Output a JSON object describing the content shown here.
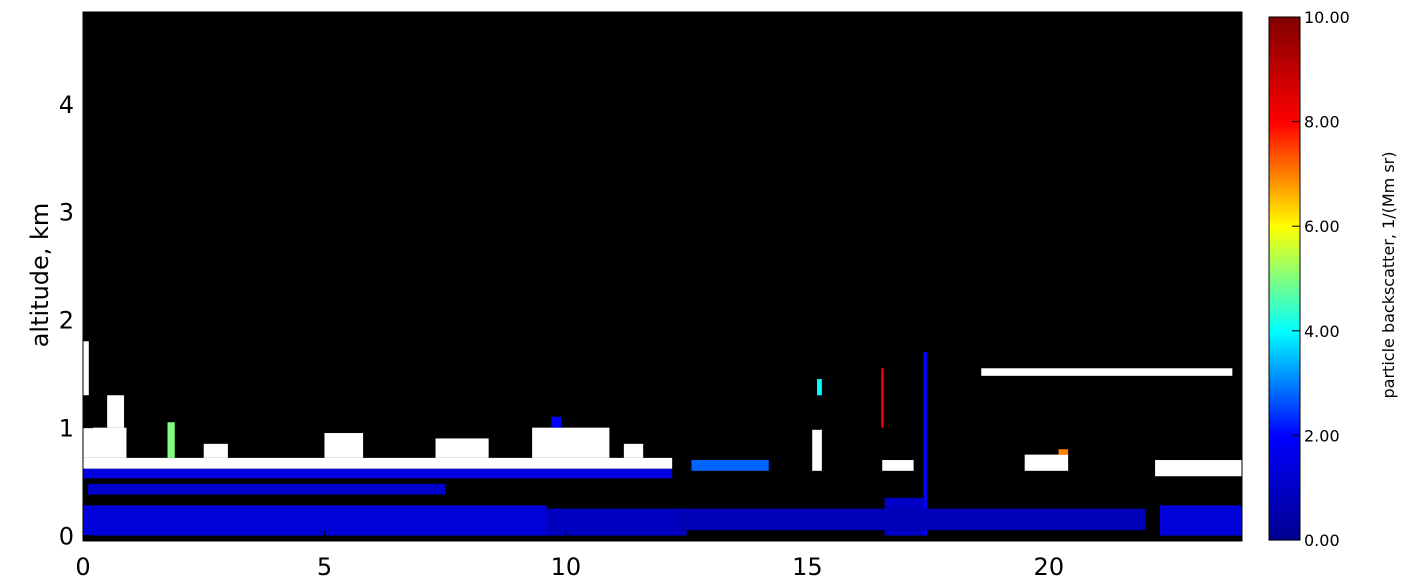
{
  "chart_data": {
    "type": "heatmap",
    "title": "",
    "xlabel": "",
    "ylabel": "altitude, km",
    "xlim": [
      0,
      24
    ],
    "ylim": [
      -0.05,
      4.85
    ],
    "x_ticks": [
      0,
      5,
      10,
      15,
      20
    ],
    "x_tick_labels": [
      "0",
      "5",
      "10",
      "15",
      "20"
    ],
    "y_ticks": [
      0,
      1,
      2,
      3,
      4
    ],
    "y_tick_labels": [
      "0",
      "1",
      "2",
      "3",
      "4"
    ],
    "background": "#000000",
    "colorbar": {
      "title": "particle backscatter, 1/(Mm sr)",
      "range": [
        0,
        10
      ],
      "ticks": [
        0,
        2,
        4,
        6,
        8,
        10
      ],
      "tick_labels": [
        "0.00",
        "2.00",
        "4.00",
        "6.00",
        "8.00",
        "10.00"
      ],
      "colormap": [
        "#00008f",
        "#0000ff",
        "#00ffff",
        "#ffff00",
        "#ff0000",
        "#800000"
      ],
      "over_color": "#ffffff"
    },
    "regions": [
      {
        "x": [
          0.0,
          9.6
        ],
        "y": [
          0.0,
          0.28
        ],
        "value": 1.3
      },
      {
        "x": [
          9.6,
          12.5
        ],
        "y": [
          0.0,
          0.25
        ],
        "value": 0.9
      },
      {
        "x": [
          0.1,
          7.5
        ],
        "y": [
          0.38,
          0.48
        ],
        "value": 1.1
      },
      {
        "x": [
          0.0,
          12.2
        ],
        "y": [
          0.53,
          0.62
        ],
        "value": 1.5
      },
      {
        "x": [
          0.0,
          12.2
        ],
        "y": [
          0.62,
          0.72
        ],
        "value": 11
      },
      {
        "x": [
          0.0,
          0.9
        ],
        "y": [
          0.72,
          1.0
        ],
        "value": 11
      },
      {
        "x": [
          0.5,
          0.85
        ],
        "y": [
          1.0,
          1.3
        ],
        "value": 11
      },
      {
        "x": [
          0.0,
          0.12
        ],
        "y": [
          1.3,
          1.8
        ],
        "value": 11
      },
      {
        "x": [
          1.75,
          1.9
        ],
        "y": [
          0.72,
          1.05
        ],
        "value": 5
      },
      {
        "x": [
          2.5,
          3.0
        ],
        "y": [
          0.72,
          0.85
        ],
        "value": 11
      },
      {
        "x": [
          5.0,
          5.8
        ],
        "y": [
          0.72,
          0.95
        ],
        "value": 11
      },
      {
        "x": [
          7.3,
          8.4
        ],
        "y": [
          0.72,
          0.9
        ],
        "value": 11
      },
      {
        "x": [
          9.3,
          10.9
        ],
        "y": [
          0.72,
          1.0
        ],
        "value": 11
      },
      {
        "x": [
          9.7,
          9.9
        ],
        "y": [
          1.0,
          1.1
        ],
        "value": 2
      },
      {
        "x": [
          11.2,
          11.6
        ],
        "y": [
          0.72,
          0.85
        ],
        "value": 11
      },
      {
        "x": [
          12.6,
          14.2
        ],
        "y": [
          0.6,
          0.7
        ],
        "value": 2.8
      },
      {
        "x": [
          15.1,
          15.3
        ],
        "y": [
          0.6,
          0.98
        ],
        "value": 11
      },
      {
        "x": [
          15.2,
          15.3
        ],
        "y": [
          1.3,
          1.45
        ],
        "value": 4
      },
      {
        "x": [
          16.55,
          17.2
        ],
        "y": [
          0.6,
          0.7
        ],
        "value": 11
      },
      {
        "x": [
          16.6,
          17.4
        ],
        "y": [
          0.0,
          0.35
        ],
        "value": 1.0
      },
      {
        "x": [
          17.4,
          17.48
        ],
        "y": [
          0.0,
          1.7
        ],
        "value": 1.8
      },
      {
        "x": [
          16.53,
          16.58
        ],
        "y": [
          1.0,
          1.55
        ],
        "value": 8
      },
      {
        "x": [
          19.5,
          20.4
        ],
        "y": [
          0.6,
          0.75
        ],
        "value": 11
      },
      {
        "x": [
          20.2,
          20.4
        ],
        "y": [
          0.75,
          0.8
        ],
        "value": 7
      },
      {
        "x": [
          18.6,
          23.8
        ],
        "y": [
          1.48,
          1.55
        ],
        "value": 11
      },
      {
        "x": [
          22.2,
          24.0
        ],
        "y": [
          0.55,
          0.7
        ],
        "value": 11
      },
      {
        "x": [
          22.3,
          24.0
        ],
        "y": [
          0.0,
          0.28
        ],
        "value": 1.3
      },
      {
        "x": [
          12.3,
          22.0
        ],
        "y": [
          0.05,
          0.25
        ],
        "value": 0.7
      }
    ]
  }
}
